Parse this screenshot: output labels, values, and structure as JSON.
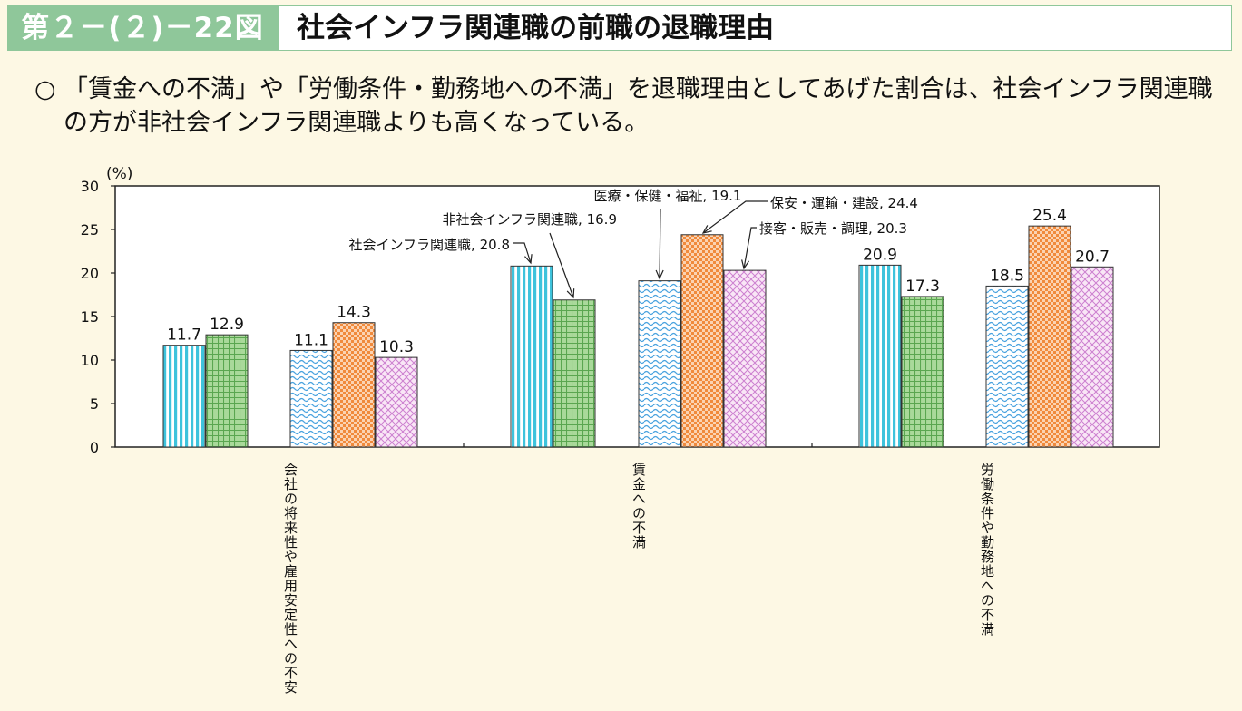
{
  "header": {
    "figure_number": "第２－(２)－22図",
    "title": "社会インフラ関連職の前職の退職理由"
  },
  "summary": {
    "bullet": "○",
    "text": "「賃金への不満」や「労働条件・勤務地への不満」を退職理由としてあげた割合は、社会インフラ関連職の方が非社会インフラ関連職よりも高くなっている。"
  },
  "chart_data": {
    "type": "bar",
    "ylabel": "(%)",
    "ylim": [
      0,
      30
    ],
    "yticks": [
      0,
      5,
      10,
      15,
      20,
      25,
      30
    ],
    "grid": false,
    "categories": [
      "会社の将来性や雇用安定性への不安",
      "賃金への不満",
      "労働条件や勤務地への不満"
    ],
    "series": [
      {
        "name": "社会インフラ関連職",
        "pattern": "vertical-stripes",
        "color": "#3ec3dc",
        "values": [
          11.7,
          20.8,
          20.9
        ]
      },
      {
        "name": "非社会インフラ関連職",
        "pattern": "grid",
        "color": "#7cc36a",
        "values": [
          12.9,
          16.9,
          17.3
        ]
      },
      {
        "name": "医療・保健・福祉",
        "pattern": "waves",
        "color": "#4aa3df",
        "values": [
          11.1,
          19.1,
          18.5
        ]
      },
      {
        "name": "保安・運輸・建設",
        "pattern": "checker",
        "color": "#f08a3c",
        "values": [
          14.3,
          24.4,
          25.4
        ]
      },
      {
        "name": "接客・販売・調理",
        "pattern": "diamond",
        "color": "#cc7fcf",
        "values": [
          10.3,
          20.3,
          20.7
        ]
      }
    ],
    "data_labels": [
      [
        "11.7",
        "20.8",
        "20.9"
      ],
      [
        "12.9",
        "16.9",
        "17.3"
      ],
      [
        "11.1",
        "19.1",
        "18.5"
      ],
      [
        "14.3",
        "24.4",
        "25.4"
      ],
      [
        "10.3",
        "20.3",
        "20.7"
      ]
    ],
    "callouts": [
      "社会インフラ関連職, 20.8",
      "非社会インフラ関連職, 16.9",
      "医療・保健・福祉, 19.1",
      "保安・運輸・建設, 24.4",
      "接客・販売・調理, 20.3"
    ]
  }
}
